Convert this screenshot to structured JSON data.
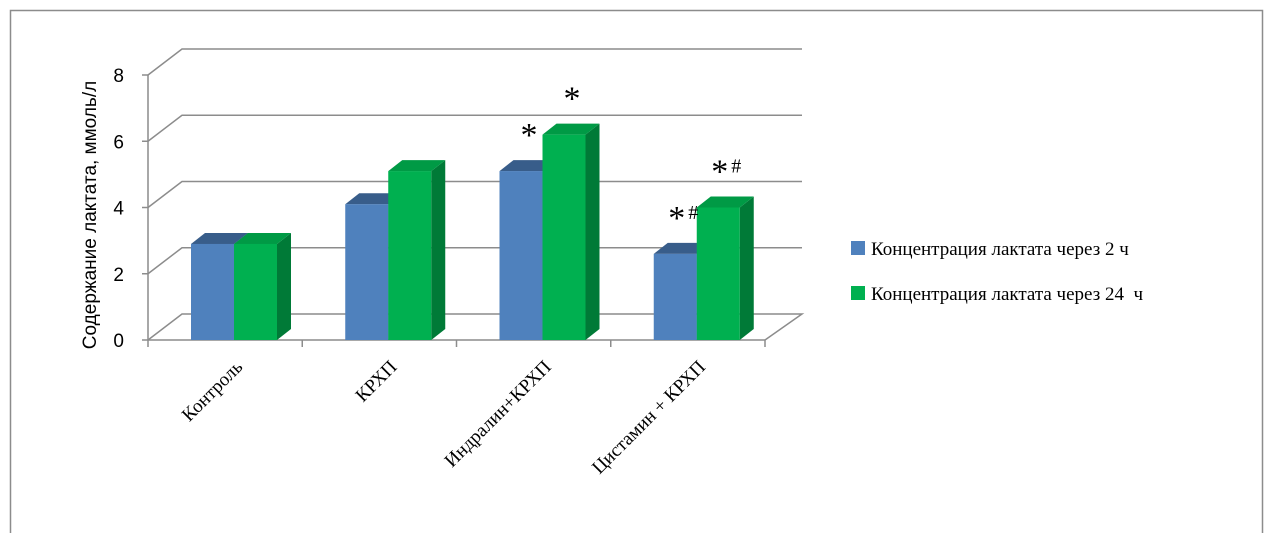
{
  "chart_data": {
    "type": "bar",
    "style": "3d-clustered-column",
    "title": "",
    "xlabel": "",
    "ylabel": "Содержание лактата, ммоль/л",
    "ylim": [
      0,
      8
    ],
    "yticks": [
      "0",
      "2",
      "4",
      "6",
      "8"
    ],
    "grid": true,
    "legend_position": "right",
    "categories": [
      "Контроль",
      "КРХП",
      "Индралин+КРХП",
      "Цистамин + КРХП"
    ],
    "series": [
      {
        "name": "Концентрация лактата через 2 ч",
        "color": "#4F81BD",
        "side_color": "#3A6496",
        "top_color": "#385D8A",
        "values": [
          2.9,
          4.1,
          5.1,
          2.6
        ],
        "annotations": [
          "",
          "",
          "*",
          "*#"
        ]
      },
      {
        "name": "Концентрация лактата через 24  ч",
        "color": "#00B050",
        "side_color": "#007A37",
        "top_color": "#009A45",
        "values": [
          2.9,
          5.1,
          6.2,
          4.0
        ],
        "annotations": [
          "",
          "",
          "*",
          "*#"
        ]
      }
    ]
  }
}
